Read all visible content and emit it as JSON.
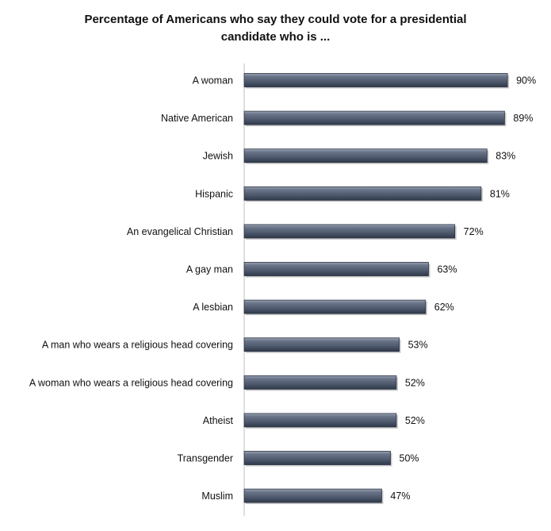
{
  "chart_data": {
    "type": "bar",
    "orientation": "horizontal",
    "title_lines": [
      "Percentage of Americans who say they could vote for a presidential",
      "candidate who is ..."
    ],
    "categories": [
      "A woman",
      "Native American",
      "Jewish",
      "Hispanic",
      "An evangelical Christian",
      "A gay man",
      "A lesbian",
      "A man who wears a religious head covering",
      "A woman who wears a religious head covering",
      "Atheist",
      "Transgender",
      "Muslim"
    ],
    "values": [
      90,
      89,
      83,
      81,
      72,
      63,
      62,
      53,
      52,
      52,
      50,
      47
    ],
    "data_labels": [
      "90%",
      "89%",
      "83%",
      "81%",
      "72%",
      "63%",
      "62%",
      "53%",
      "52%",
      "52%",
      "50%",
      "47%"
    ],
    "xlim": [
      0,
      100
    ],
    "grid": false,
    "legend": "none",
    "bar_color": "#4f5a6e"
  }
}
